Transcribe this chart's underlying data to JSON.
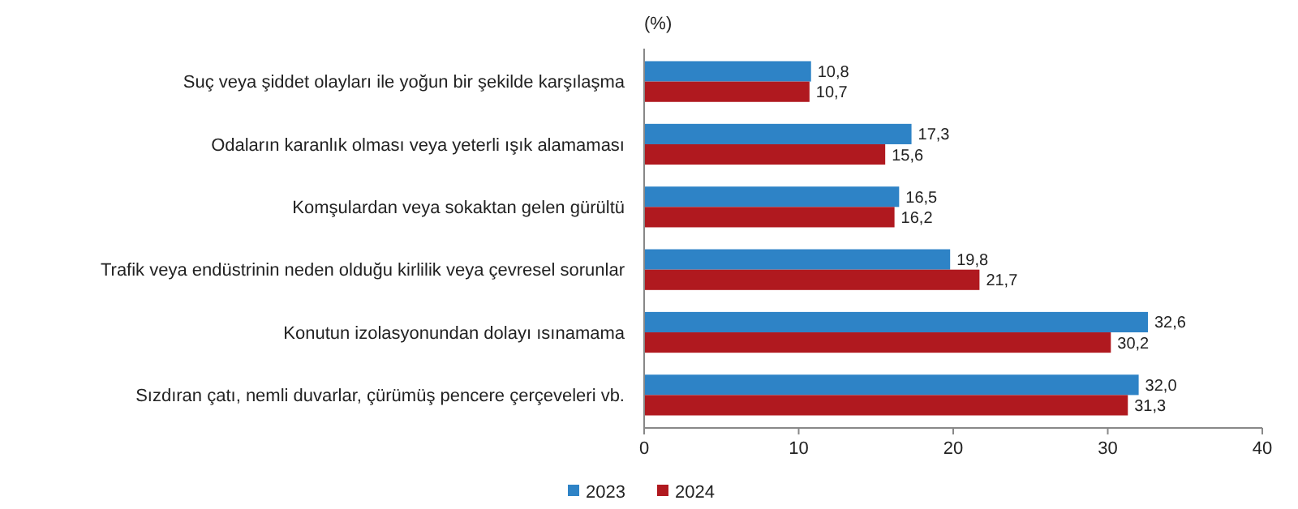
{
  "chart_data": {
    "type": "bar",
    "orientation": "horizontal",
    "xlabel": "(%)",
    "categories": [
      "Suç veya şiddet olayları ile yoğun bir şekilde karşılaşma",
      "Odaların karanlık olması veya yeterli ışık alamaması",
      "Komşulardan veya sokaktan gelen gürültü",
      "Trafik veya endüstrinin neden olduğu kirlilik veya çevresel sorunlar",
      "Konutun izolasyonundan dolayı ısınamama",
      "Sızdıran çatı, nemli duvarlar, çürümüş pencere çerçeveleri vb."
    ],
    "series": [
      {
        "name": "2023",
        "color": "#2e83c6",
        "values": [
          10.8,
          17.3,
          16.5,
          19.8,
          32.6,
          32.0
        ],
        "value_labels": [
          "10,8",
          "17,3",
          "16,5",
          "19,8",
          "32,6",
          "32,0"
        ]
      },
      {
        "name": "2024",
        "color": "#b0191f",
        "values": [
          10.7,
          15.6,
          16.2,
          21.7,
          30.2,
          31.3
        ],
        "value_labels": [
          "10,7",
          "15,6",
          "16,2",
          "21,7",
          "30,2",
          "31,3"
        ]
      }
    ],
    "xlim": [
      0,
      40
    ],
    "xticks": [
      0,
      10,
      20,
      30,
      40
    ],
    "grid": false,
    "legend": "bottom"
  }
}
